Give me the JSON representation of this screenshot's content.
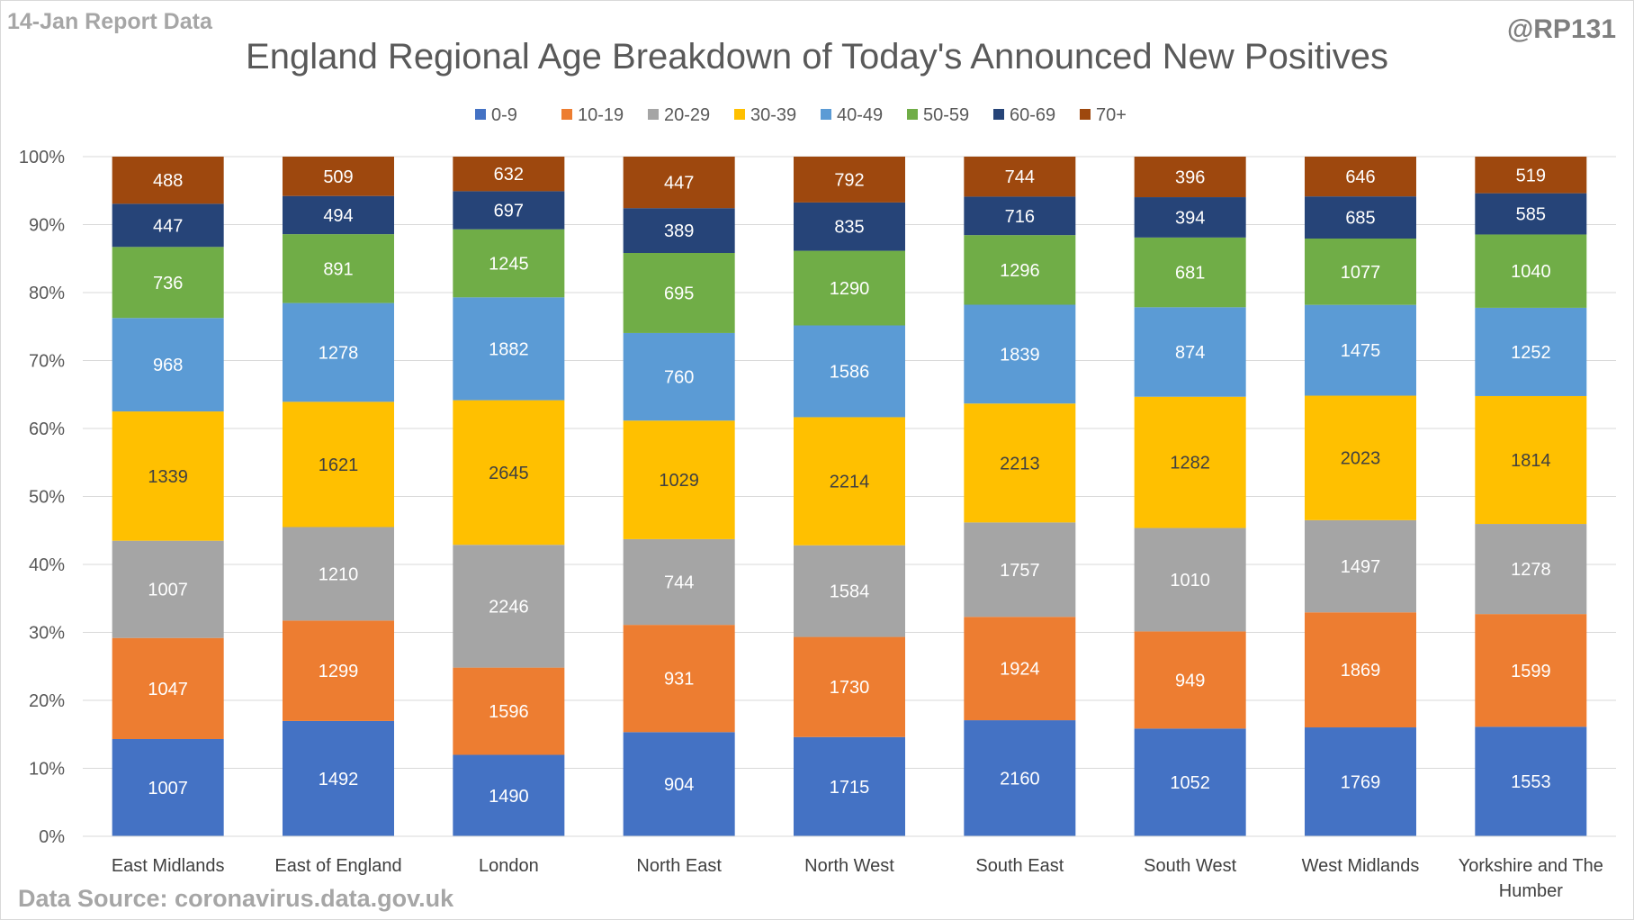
{
  "header": {
    "report_label": "14-Jan Report Data",
    "handle": "@RP131"
  },
  "footer": {
    "source": "Data Source: coronavirus.data.gov.uk"
  },
  "chart_data": {
    "type": "bar",
    "stacking": "percent",
    "title": "England Regional Age Breakdown of Today's Announced New Positives",
    "legend_position": "top",
    "grid": true,
    "ylim": [
      0,
      100
    ],
    "yticks": [
      "0%",
      "10%",
      "20%",
      "30%",
      "40%",
      "50%",
      "60%",
      "70%",
      "80%",
      "90%",
      "100%"
    ],
    "categories": [
      "East Midlands",
      "East of England",
      "London",
      "North East",
      "North West",
      "South East",
      "South West",
      "West Midlands",
      "Yorkshire and The Humber"
    ],
    "series": [
      {
        "name": "0-9",
        "color": "#4472c4",
        "values": [
          1007,
          1492,
          1490,
          904,
          1715,
          2160,
          1052,
          1769,
          1553
        ]
      },
      {
        "name": "10-19",
        "color": "#ed7d31",
        "values": [
          1047,
          1299,
          1596,
          931,
          1730,
          1924,
          949,
          1869,
          1599
        ]
      },
      {
        "name": "20-29",
        "color": "#a5a5a5",
        "values": [
          1007,
          1210,
          2246,
          744,
          1584,
          1757,
          1010,
          1497,
          1278
        ]
      },
      {
        "name": "30-39",
        "color": "#ffc000",
        "values": [
          1339,
          1621,
          2645,
          1029,
          2214,
          2213,
          1282,
          2023,
          1814
        ]
      },
      {
        "name": "40-49",
        "color": "#5b9bd5",
        "values": [
          968,
          1278,
          1882,
          760,
          1586,
          1839,
          874,
          1475,
          1252
        ]
      },
      {
        "name": "50-59",
        "color": "#70ad47",
        "values": [
          736,
          891,
          1245,
          695,
          1290,
          1296,
          681,
          1077,
          1040
        ]
      },
      {
        "name": "60-69",
        "color": "#264478",
        "values": [
          447,
          494,
          697,
          389,
          835,
          716,
          394,
          685,
          585
        ]
      },
      {
        "name": "70+",
        "color": "#9e480e",
        "values": [
          488,
          509,
          632,
          447,
          792,
          744,
          396,
          646,
          519
        ]
      }
    ]
  }
}
